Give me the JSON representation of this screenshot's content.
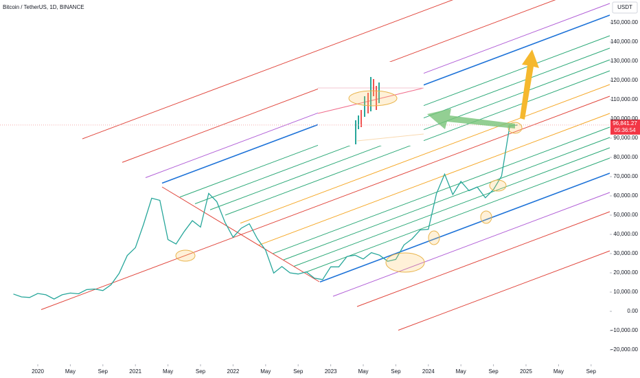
{
  "chart_data": {
    "type": "line",
    "title": "Bitcoin / TetherUS, 1D, BINANCE",
    "currency": "USDT",
    "x": [
      "2019-10",
      "2019-11",
      "2019-12",
      "2020-01",
      "2020-02",
      "2020-03",
      "2020-04",
      "2020-05",
      "2020-06",
      "2020-07",
      "2020-08",
      "2020-09",
      "2020-10",
      "2020-11",
      "2020-12",
      "2021-01",
      "2021-02",
      "2021-03",
      "2021-04",
      "2021-05",
      "2021-06",
      "2021-07",
      "2021-08",
      "2021-09",
      "2021-10",
      "2021-11",
      "2021-12",
      "2022-01",
      "2022-02",
      "2022-03",
      "2022-04",
      "2022-05",
      "2022-06",
      "2022-07",
      "2022-08",
      "2022-09",
      "2022-10",
      "2022-11",
      "2022-12",
      "2023-01",
      "2023-02",
      "2023-03",
      "2023-04",
      "2023-05",
      "2023-06",
      "2023-07",
      "2023-08",
      "2023-09",
      "2023-10",
      "2023-11",
      "2023-12",
      "2024-01",
      "2024-02",
      "2024-03",
      "2024-04",
      "2024-05",
      "2024-06",
      "2024-07",
      "2024-08",
      "2024-09",
      "2024-10",
      "2024-11",
      "2024-12"
    ],
    "series": [
      {
        "name": "BTCUSDT",
        "color": "#26a69a",
        "values": [
          9000,
          7500,
          7200,
          9300,
          8600,
          6400,
          8600,
          9500,
          9100,
          11300,
          11600,
          10800,
          13800,
          19700,
          29000,
          33100,
          45200,
          58800,
          57700,
          37300,
          35000,
          41500,
          47100,
          43800,
          61300,
          57000,
          46300,
          38500,
          43200,
          45500,
          37700,
          31800,
          19900,
          23300,
          20000,
          19400,
          20500,
          17200,
          16500,
          23100,
          23100,
          28500,
          29200,
          27200,
          30500,
          29200,
          26000,
          27000,
          34500,
          37700,
          42300,
          42600,
          61200,
          71300,
          60700,
          67500,
          62700,
          64600,
          59000,
          63300,
          70300,
          96400,
          96841.27
        ]
      }
    ],
    "last_price": {
      "value": 96841.27,
      "label": "96,841.27"
    },
    "countdown": "05:36:54",
    "ylim": [
      -27500,
      161800
    ],
    "yticks": [
      {
        "value": 150000,
        "label": "150,000.00"
      },
      {
        "value": 140000,
        "label": "140,000.00"
      },
      {
        "value": 130000,
        "label": "130,000.00"
      },
      {
        "value": 120000,
        "label": "120,000.00"
      },
      {
        "value": 110000,
        "label": "110,000.00"
      },
      {
        "value": 100000,
        "label": "100,000.00"
      },
      {
        "value": 90000,
        "label": "90,000.00"
      },
      {
        "value": 80000,
        "label": "80,000.00"
      },
      {
        "value": 70000,
        "label": "70,000.00"
      },
      {
        "value": 60000,
        "label": "60,000.00"
      },
      {
        "value": 50000,
        "label": "50,000.00"
      },
      {
        "value": 40000,
        "label": "40,000.00"
      },
      {
        "value": 30000,
        "label": "30,000.00"
      },
      {
        "value": 20000,
        "label": "20,000.00"
      },
      {
        "value": 10000,
        "label": "10,000.00"
      },
      {
        "value": 0,
        "label": "0.00"
      },
      {
        "value": -10000,
        "label": "−10,000.00"
      },
      {
        "value": -20000,
        "label": "−20,000.00"
      }
    ],
    "xticks": [
      {
        "value": "2020-01",
        "label": "2020"
      },
      {
        "value": "2020-05",
        "label": "May"
      },
      {
        "value": "2020-09",
        "label": "Sep"
      },
      {
        "value": "2021-01",
        "label": "2021"
      },
      {
        "value": "2021-05",
        "label": "May"
      },
      {
        "value": "2021-09",
        "label": "Sep"
      },
      {
        "value": "2022-01",
        "label": "2022"
      },
      {
        "value": "2022-05",
        "label": "May"
      },
      {
        "value": "2022-09",
        "label": "Sep"
      },
      {
        "value": "2023-01",
        "label": "2023"
      },
      {
        "value": "2023-05",
        "label": "May"
      },
      {
        "value": "2023-09",
        "label": "Sep"
      },
      {
        "value": "2024-01",
        "label": "2024"
      },
      {
        "value": "2024-05",
        "label": "May"
      },
      {
        "value": "2024-09",
        "label": "Sep"
      },
      {
        "value": "2025-01",
        "label": "2025"
      },
      {
        "value": "2025-05",
        "label": "May"
      },
      {
        "value": "2025-09",
        "label": "Sep"
      }
    ]
  }
}
